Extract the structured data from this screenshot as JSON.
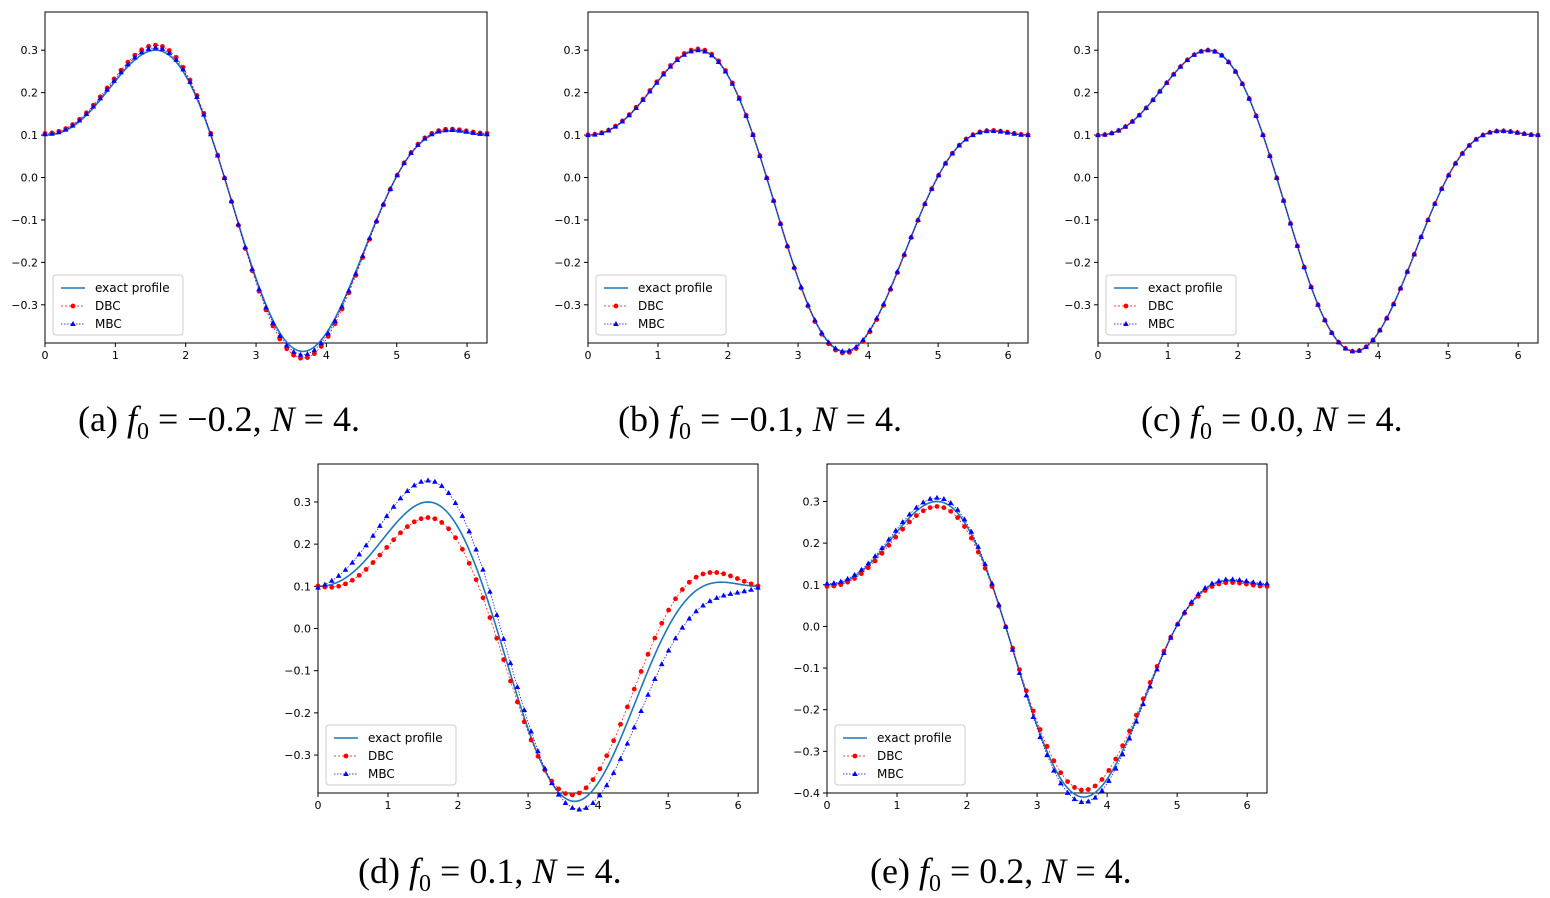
{
  "colors": {
    "exact": "#1f77b4",
    "dbc": "#ff0000",
    "mbc": "#0000ff"
  },
  "legend": {
    "exact": "exact profile",
    "dbc": "DBC",
    "mbc": "MBC"
  },
  "charts": [
    {
      "id": "a",
      "caption": {
        "label": "(a)",
        "f0": "−0.2",
        "N": "4"
      },
      "f0": -0.2
    },
    {
      "id": "b",
      "caption": {
        "label": "(b)",
        "f0": "−0.1",
        "N": "4"
      },
      "f0": -0.1
    },
    {
      "id": "c",
      "caption": {
        "label": "(c)",
        "f0": "0.0",
        "N": "4"
      },
      "f0": 0.0
    },
    {
      "id": "d",
      "caption": {
        "label": "(d)",
        "f0": "0.1",
        "N": "4"
      },
      "f0": 0.1
    },
    {
      "id": "e",
      "caption": {
        "label": "(e)",
        "f0": "0.2",
        "N": "4"
      },
      "f0": 0.2
    }
  ],
  "chart_data": [
    {
      "type": "line",
      "xlim": [
        0,
        6.283
      ],
      "ylim": [
        -0.39,
        0.39
      ],
      "x_ticks": [
        "0",
        "1",
        "2",
        "3",
        "4",
        "5",
        "6"
      ],
      "y_ticks": [
        "-0.3",
        "-0.2",
        "-0.1",
        "0.0",
        "0.1",
        "0.2",
        "0.3"
      ],
      "legend_position": "lower-left",
      "exact": {
        "a1": 0.2,
        "b1": 0.2,
        "a2": -0.1,
        "b2": -0.1
      },
      "dbc": {
        "amp": 1.04,
        "shift": 0.0
      },
      "mbc": {
        "amp": 1.02,
        "shift": 0.0
      },
      "series": [
        {
          "name": "exact profile"
        },
        {
          "name": "DBC"
        },
        {
          "name": "MBC"
        }
      ]
    },
    {
      "type": "line",
      "xlim": [
        0,
        6.283
      ],
      "ylim": [
        -0.39,
        0.39
      ],
      "x_ticks": [
        "0",
        "1",
        "2",
        "3",
        "4",
        "5",
        "6"
      ],
      "y_ticks": [
        "-0.3",
        "-0.2",
        "-0.1",
        "0.0",
        "0.1",
        "0.2",
        "0.3"
      ],
      "legend_position": "lower-left",
      "exact": {
        "a1": 0.2,
        "b1": 0.2,
        "a2": -0.1,
        "b2": -0.1
      },
      "dbc": {
        "amp": 1.01,
        "shift": 0.0
      },
      "mbc": {
        "amp": 1.0,
        "shift": 0.0
      },
      "series": [
        {
          "name": "exact profile"
        },
        {
          "name": "DBC"
        },
        {
          "name": "MBC"
        }
      ]
    },
    {
      "type": "line",
      "xlim": [
        0,
        6.283
      ],
      "ylim": [
        -0.39,
        0.39
      ],
      "x_ticks": [
        "0",
        "1",
        "2",
        "3",
        "4",
        "5",
        "6"
      ],
      "y_ticks": [
        "-0.3",
        "-0.2",
        "-0.1",
        "0.0",
        "0.1",
        "0.2",
        "0.3"
      ],
      "legend_position": "lower-left",
      "exact": {
        "a1": 0.2,
        "b1": 0.2,
        "a2": -0.1,
        "b2": -0.1
      },
      "dbc": {
        "amp": 1.0,
        "shift": 0.0
      },
      "mbc": {
        "amp": 1.0,
        "shift": 0.0
      },
      "series": [
        {
          "name": "exact profile"
        },
        {
          "name": "DBC"
        },
        {
          "name": "MBC"
        }
      ]
    },
    {
      "type": "line",
      "xlim": [
        0,
        6.283
      ],
      "ylim": [
        -0.39,
        0.39
      ],
      "x_ticks": [
        "0",
        "1",
        "2",
        "3",
        "4",
        "5",
        "6"
      ],
      "y_ticks": [
        "-0.3",
        "-0.2",
        "-0.1",
        "0.0",
        "0.1",
        "0.2",
        "0.3"
      ],
      "legend_position": "lower-left",
      "exact": {
        "a1": 0.2,
        "b1": 0.2,
        "a2": -0.1,
        "b2": -0.1
      },
      "dbc": {
        "amp": 1.01,
        "shift": -0.04
      },
      "mbc": {
        "amp": 0.97,
        "shift": 0.06
      },
      "series": [
        {
          "name": "exact profile"
        },
        {
          "name": "DBC"
        },
        {
          "name": "MBC"
        }
      ]
    },
    {
      "type": "line",
      "xlim": [
        0,
        6.283
      ],
      "ylim": [
        -0.4,
        0.39
      ],
      "x_ticks": [
        "0",
        "1",
        "2",
        "3",
        "4",
        "5",
        "6"
      ],
      "y_ticks": [
        "-0.4",
        "-0.3",
        "-0.2",
        "-0.1",
        "0.0",
        "0.1",
        "0.2",
        "0.3"
      ],
      "legend_position": "lower-left",
      "exact": {
        "a1": 0.2,
        "b1": 0.2,
        "a2": -0.1,
        "b2": -0.1
      },
      "dbc": {
        "amp": 0.96,
        "shift": 0.0
      },
      "mbc": {
        "amp": 1.03,
        "shift": 0.0
      },
      "series": [
        {
          "name": "exact profile"
        },
        {
          "name": "DBC"
        },
        {
          "name": "MBC"
        }
      ]
    }
  ]
}
